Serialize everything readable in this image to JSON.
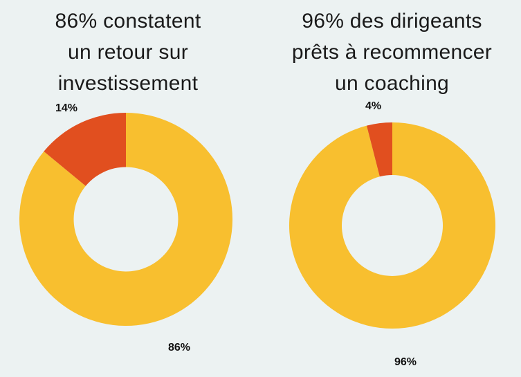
{
  "colors": {
    "background": "#ecf2f2",
    "primary_slice": "#f8bf2f",
    "secondary_slice": "#e14f1f",
    "text": "#1a1a1a"
  },
  "chart_data": [
    {
      "type": "pie",
      "title_lines": [
        "86% constatent",
        "un retour sur",
        "investissement"
      ],
      "slices": [
        {
          "label": "86%",
          "value": 86,
          "color": "#f8bf2f"
        },
        {
          "label": "14%",
          "value": 14,
          "color": "#e14f1f"
        }
      ]
    },
    {
      "type": "pie",
      "title_lines": [
        "96% des dirigeants",
        "prêts à recommencer",
        "un coaching"
      ],
      "slices": [
        {
          "label": "96%",
          "value": 96,
          "color": "#f8bf2f"
        },
        {
          "label": "4%",
          "value": 4,
          "color": "#e14f1f"
        }
      ]
    }
  ]
}
